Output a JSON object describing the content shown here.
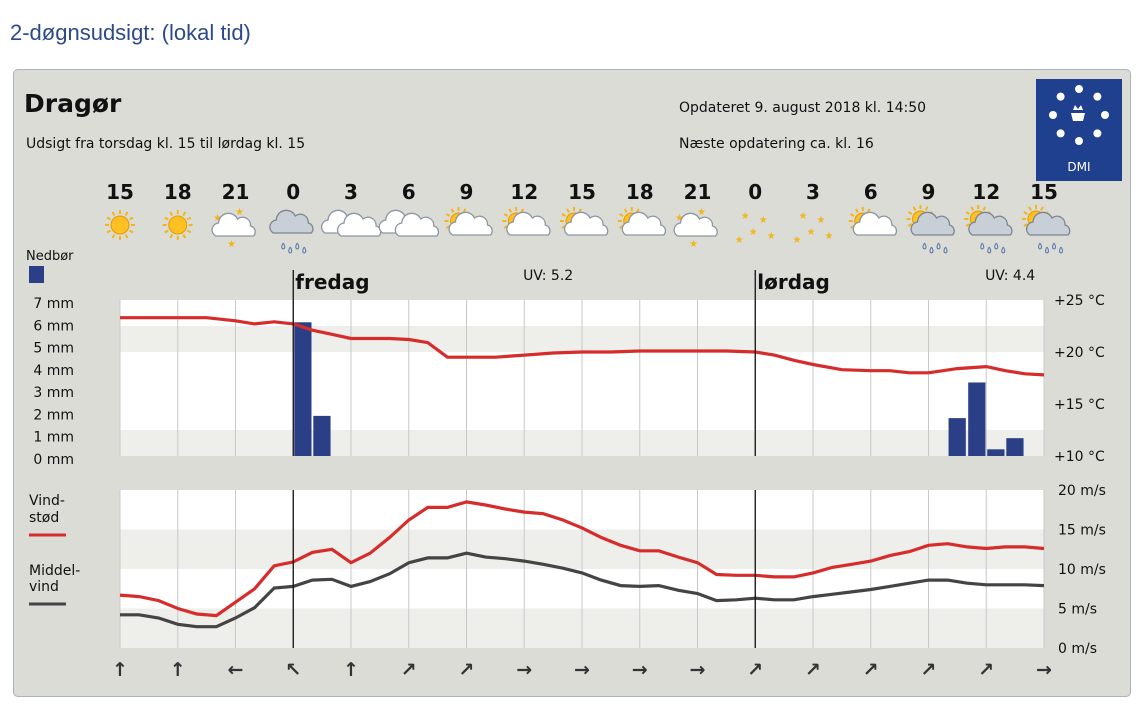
{
  "page": {
    "title": "2-døgnsudsigt: (lokal tid)"
  },
  "header": {
    "location": "Dragør",
    "subtitle": "Udsigt fra torsdag kl. 15 til lørdag kl. 15",
    "updated": "Opdateret 9. august 2018 kl. 14:50",
    "next_update": "Næste opdatering ca. kl. 16",
    "logo_text": "DMI"
  },
  "colors": {
    "temp": "#d62c2c",
    "precip": "#2b3f86",
    "gust": "#d62c2c",
    "mean": "#444444",
    "logo_bg": "#1f3f8f"
  },
  "chart_data": [
    {
      "type": "line",
      "hours": [
        "15",
        "18",
        "21",
        "0",
        "3",
        "6",
        "9",
        "12",
        "15",
        "18",
        "21",
        "0",
        "3",
        "6",
        "9",
        "12",
        "15"
      ],
      "icons": [
        "sun",
        "sun",
        "night-partly-cloudy",
        "cloud-rain",
        "partly-cloudy",
        "partly-cloudy",
        "sun-cloud",
        "sun-cloud",
        "sun-cloud",
        "sun-cloud",
        "night-partly-cloudy",
        "stars",
        "stars",
        "sun-cloud",
        "sun-cloud-rain",
        "sun-cloud-rain",
        "sun-cloud-rain"
      ],
      "day_labels": [
        {
          "at": 3,
          "label": "fredag"
        },
        {
          "at": 11,
          "label": "lørdag"
        }
      ],
      "uv_labels": [
        {
          "at": 7.5,
          "label": "UV: 5.2"
        },
        {
          "at": 15.5,
          "label": "UV: 4.4"
        }
      ],
      "precip_legend": "Nedbør",
      "precip_axis": {
        "labels": [
          "7 mm",
          "6 mm",
          "5 mm",
          "4 mm",
          "3 mm",
          "2 mm",
          "1 mm",
          "0 mm"
        ],
        "ylim": [
          0,
          7
        ]
      },
      "temp_axis": {
        "labels": [
          "+25 °C",
          "+20 °C",
          "+15 °C",
          "+10 °C"
        ],
        "ylim": [
          10,
          25
        ]
      },
      "temperature": {
        "x": [
          0,
          0.5,
          1,
          1.5,
          2,
          2.33,
          2.67,
          3,
          3.33,
          3.67,
          4,
          4.33,
          4.67,
          5,
          5.33,
          5.67,
          6,
          6.5,
          7,
          7.5,
          8,
          8.5,
          9,
          9.33,
          9.67,
          10,
          10.5,
          11,
          11.33,
          11.67,
          12,
          12.5,
          13,
          13.33,
          13.67,
          14,
          14.5,
          15,
          15.33,
          15.67,
          16
        ],
        "y": [
          23.3,
          23.3,
          23.3,
          23.3,
          23.0,
          22.7,
          22.9,
          22.7,
          22.1,
          21.7,
          21.3,
          21.3,
          21.3,
          21.2,
          20.9,
          19.5,
          19.5,
          19.5,
          19.7,
          19.9,
          20.0,
          20.0,
          20.1,
          20.1,
          20.1,
          20.1,
          20.1,
          20.0,
          19.7,
          19.2,
          18.8,
          18.3,
          18.2,
          18.2,
          18.0,
          18.0,
          18.4,
          18.6,
          18.2,
          17.9,
          17.8
        ]
      },
      "precipitation": {
        "x": [
          3,
          3.33,
          14.33,
          14.67,
          15,
          15.33
        ],
        "mm": [
          6.0,
          1.8,
          1.7,
          3.3,
          0.3,
          0.8
        ]
      }
    },
    {
      "type": "line",
      "legend": {
        "gust_1": "Vind-",
        "gust_2": "stød",
        "mean_1": "Middel-",
        "mean_2": "vind"
      },
      "wind_axis": {
        "labels": [
          "20 m/s",
          "15 m/s",
          "10 m/s",
          "5 m/s",
          "0 m/s"
        ],
        "ylim": [
          0,
          20
        ]
      },
      "x": [
        0,
        0.33,
        0.67,
        1,
        1.33,
        1.67,
        2,
        2.33,
        2.67,
        3,
        3.33,
        3.67,
        4,
        4.33,
        4.67,
        5,
        5.33,
        5.67,
        6,
        6.33,
        6.67,
        7,
        7.33,
        7.67,
        8,
        8.33,
        8.67,
        9,
        9.33,
        9.67,
        10,
        10.33,
        10.67,
        11,
        11.33,
        11.67,
        12,
        12.33,
        12.67,
        13,
        13.33,
        13.67,
        14,
        14.33,
        14.67,
        15,
        15.33,
        15.67,
        16
      ],
      "gust": [
        6.7,
        6.5,
        6.0,
        5.0,
        4.3,
        4.1,
        5.8,
        7.5,
        10.4,
        10.9,
        12.1,
        12.5,
        10.8,
        12.0,
        14.0,
        16.2,
        17.8,
        17.8,
        18.5,
        18.1,
        17.6,
        17.2,
        17.0,
        16.2,
        15.2,
        14.0,
        13.0,
        12.3,
        12.3,
        11.5,
        10.8,
        9.3,
        9.2,
        9.2,
        9.0,
        9.0,
        9.5,
        10.2,
        10.6,
        11.0,
        11.7,
        12.2,
        13.0,
        13.2,
        12.8,
        12.6,
        12.8,
        12.8,
        12.6
      ],
      "mean": [
        4.2,
        4.2,
        3.8,
        3.0,
        2.7,
        2.7,
        3.8,
        5.1,
        7.6,
        7.8,
        8.6,
        8.7,
        7.8,
        8.4,
        9.4,
        10.8,
        11.4,
        11.4,
        12.0,
        11.5,
        11.3,
        11.0,
        10.6,
        10.1,
        9.5,
        8.6,
        7.9,
        7.8,
        7.9,
        7.3,
        6.9,
        6.0,
        6.1,
        6.3,
        6.1,
        6.1,
        6.5,
        6.8,
        7.1,
        7.4,
        7.8,
        8.2,
        8.6,
        8.6,
        8.2,
        8.0,
        8.0,
        8.0,
        7.9
      ]
    }
  ],
  "wind_arrows": [
    "↑",
    "↑",
    "←",
    "↖",
    "↑",
    "↗",
    "↗",
    "→",
    "→",
    "→",
    "→",
    "↗",
    "↗",
    "↗",
    "↗",
    "↗",
    "→"
  ]
}
